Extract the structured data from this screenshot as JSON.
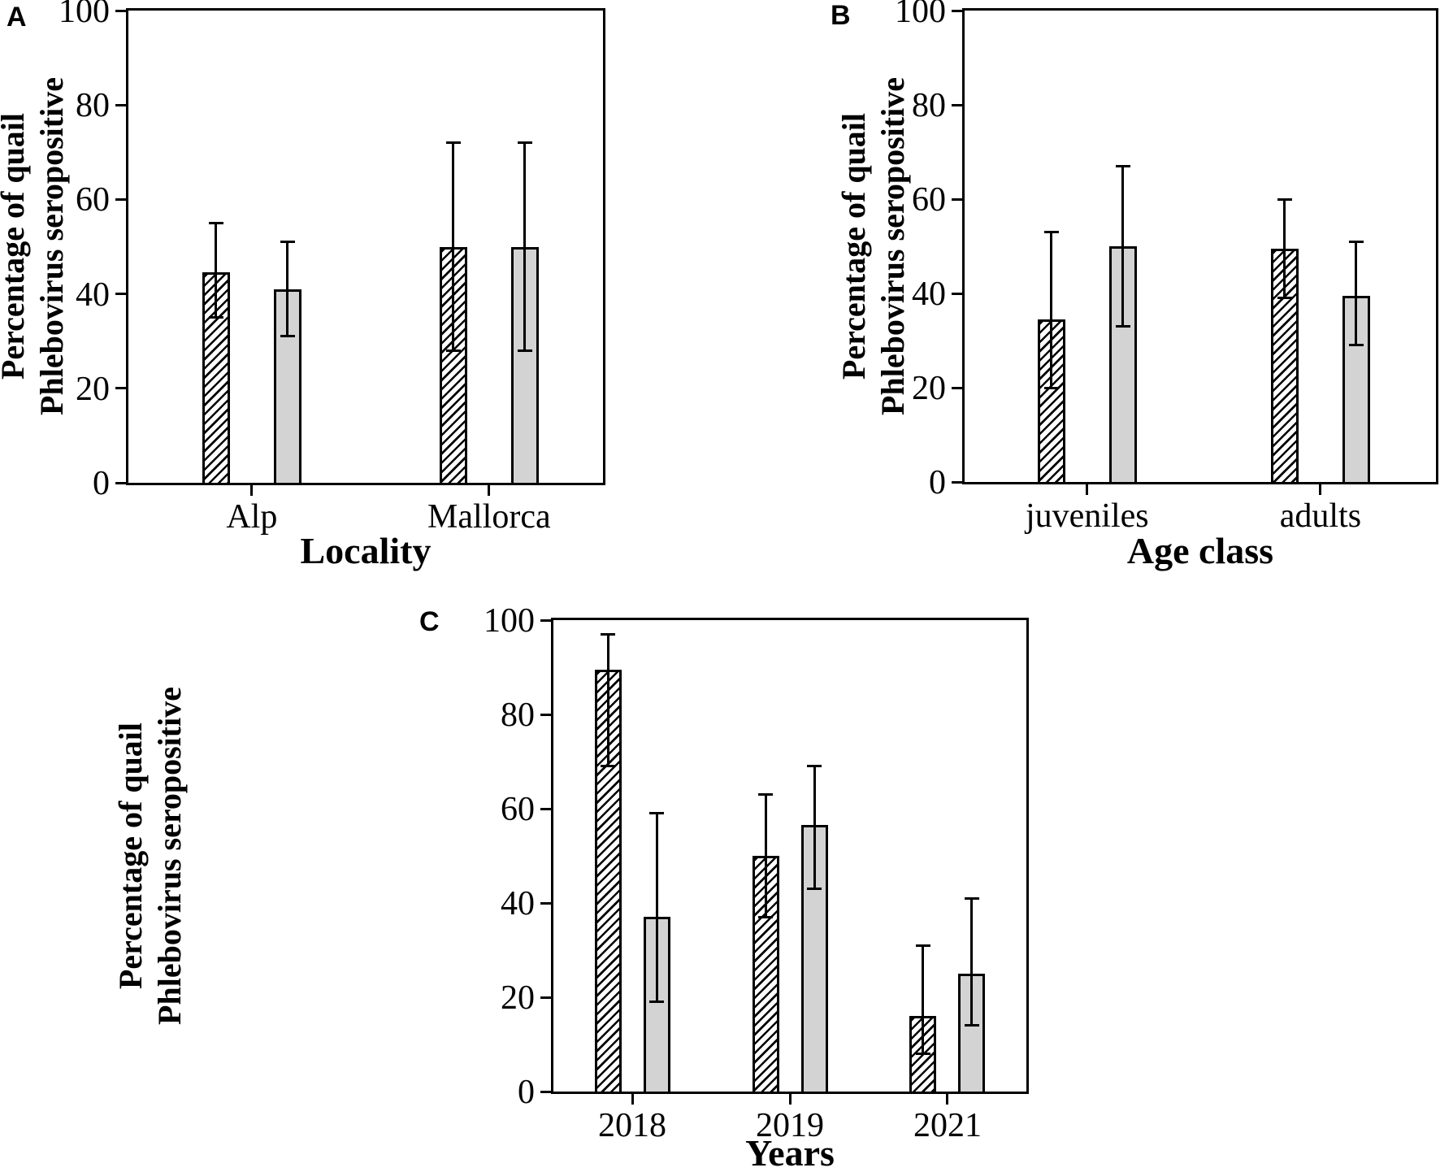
{
  "figure": {
    "background": "#ffffff",
    "axis_color": "#000000",
    "gray_bar_fill": "#d3d3d3",
    "hatch_color": "#000000",
    "hatch_style": "diagonal-forward-slash"
  },
  "chart_data": [
    {
      "panel_label": "A",
      "type": "bar",
      "title": "",
      "xlabel": "Locality",
      "ylabel": [
        "Percentage of quail",
        "Phlebovirus seropositive"
      ],
      "ylim": [
        0,
        100
      ],
      "yticks": [
        0,
        20,
        40,
        60,
        80,
        100
      ],
      "categories": [
        "Alp",
        "Mallorca"
      ],
      "grid": false,
      "legend": "none",
      "error_bars": true,
      "series": [
        {
          "name": "hatched-bars",
          "pattern": "diagonal-hatch",
          "values": [
            44.5,
            50
          ],
          "error_low": [
            35,
            28
          ],
          "error_high": [
            55,
            72
          ]
        },
        {
          "name": "gray-bars",
          "pattern": "solid-gray",
          "values": [
            41,
            50
          ],
          "error_low": [
            31,
            28
          ],
          "error_high": [
            51,
            72
          ]
        }
      ]
    },
    {
      "panel_label": "B",
      "type": "bar",
      "title": "",
      "xlabel": "Age class",
      "ylabel": [
        "Percentage of quail",
        "Phlebovirus seropositive"
      ],
      "ylim": [
        0,
        100
      ],
      "yticks": [
        0,
        20,
        40,
        60,
        80,
        100
      ],
      "categories": [
        "juveniles",
        "adults"
      ],
      "grid": false,
      "legend": "none",
      "error_bars": true,
      "series": [
        {
          "name": "hatched-bars",
          "pattern": "diagonal-hatch",
          "values": [
            34.5,
            49.5
          ],
          "error_low": [
            20,
            39
          ],
          "error_high": [
            53,
            60
          ]
        },
        {
          "name": "gray-bars",
          "pattern": "solid-gray",
          "values": [
            50,
            39.5
          ],
          "error_low": [
            33,
            29
          ],
          "error_high": [
            67,
            51
          ]
        }
      ]
    },
    {
      "panel_label": "C",
      "type": "bar",
      "title": "",
      "xlabel": "Years",
      "ylabel": [
        "Percentage of quail",
        "Phlebovirus seropositive"
      ],
      "ylim": [
        0,
        100
      ],
      "yticks": [
        0,
        20,
        40,
        60,
        80,
        100
      ],
      "categories": [
        "2018",
        "2019",
        "2021"
      ],
      "grid": false,
      "legend": "none",
      "error_bars": true,
      "series": [
        {
          "name": "hatched-bars",
          "pattern": "diagonal-hatch",
          "values": [
            89.5,
            50,
            16
          ],
          "error_low": [
            69,
            37,
            8
          ],
          "error_high": [
            97,
            63,
            31
          ]
        },
        {
          "name": "gray-bars",
          "pattern": "solid-gray",
          "values": [
            37,
            56.5,
            25
          ],
          "error_low": [
            19,
            43,
            14
          ],
          "error_high": [
            59,
            69,
            41
          ]
        }
      ]
    }
  ]
}
